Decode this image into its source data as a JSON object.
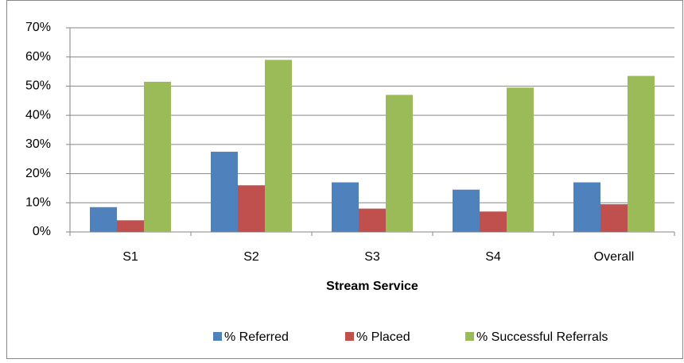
{
  "chart_data": {
    "type": "bar",
    "x_label": "Stream Service",
    "categories": [
      "S1",
      "S2",
      "S3",
      "S4",
      "Overall"
    ],
    "series": [
      {
        "name": "% Referred",
        "color": "#4f81bd",
        "values": [
          8.5,
          27.5,
          17,
          14.5,
          17
        ]
      },
      {
        "name": "% Placed",
        "color": "#c0504d",
        "values": [
          4,
          16,
          8,
          7,
          9.5
        ]
      },
      {
        "name": "% Successful Referrals",
        "color": "#9bbb59",
        "values": [
          51.5,
          59,
          47,
          49.5,
          53.5
        ]
      }
    ],
    "ylim": [
      0,
      70
    ],
    "yticks": [
      {
        "value": 0,
        "label": "0%"
      },
      {
        "value": 10,
        "label": "10%"
      },
      {
        "value": 20,
        "label": "20%"
      },
      {
        "value": 30,
        "label": "30%"
      },
      {
        "value": 40,
        "label": "40%"
      },
      {
        "value": 50,
        "label": "50%"
      },
      {
        "value": 60,
        "label": "60%"
      },
      {
        "value": 70,
        "label": "70%"
      }
    ],
    "grid": true,
    "legend": "bottom"
  }
}
